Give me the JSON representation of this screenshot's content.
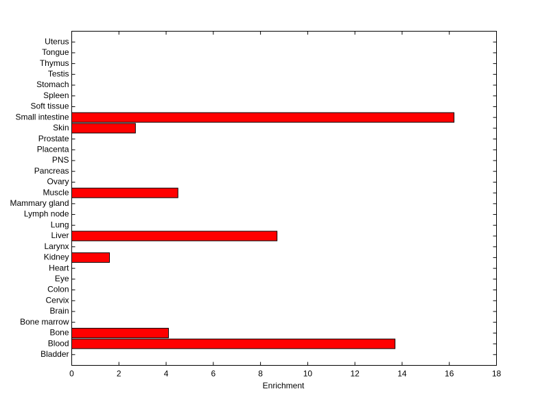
{
  "chart_data": {
    "type": "bar",
    "orientation": "horizontal",
    "xlabel": "Enrichment",
    "categories": [
      "Bladder",
      "Blood",
      "Bone",
      "Bone marrow",
      "Brain",
      "Cervix",
      "Colon",
      "Eye",
      "Heart",
      "Kidney",
      "Larynx",
      "Liver",
      "Lung",
      "Lymph node",
      "Mammary gland",
      "Muscle",
      "Ovary",
      "Pancreas",
      "PNS",
      "Placenta",
      "Prostate",
      "Skin",
      "Small intestine",
      "Soft tissue",
      "Spleen",
      "Stomach",
      "Testis",
      "Thymus",
      "Tongue",
      "Uterus"
    ],
    "values": [
      0,
      13.7,
      4.1,
      0,
      0,
      0,
      0,
      0,
      0,
      1.6,
      0,
      8.7,
      0,
      0,
      0,
      4.5,
      0,
      0,
      0,
      0,
      0,
      2.7,
      16.2,
      0,
      0,
      0,
      0,
      0,
      0,
      0
    ],
    "color": "#ff0000",
    "xlim": [
      0,
      18
    ],
    "xticks": [
      0,
      2,
      4,
      6,
      8,
      10,
      12,
      14,
      16,
      18
    ]
  }
}
